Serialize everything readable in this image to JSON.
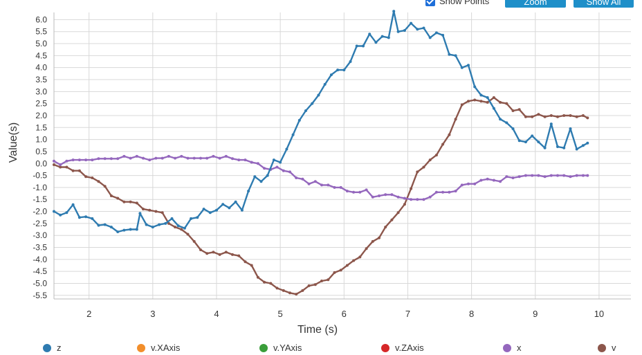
{
  "toolbar": {
    "show_points_label": "Show Points",
    "show_points_checked": true,
    "zoom_label": "Zoom",
    "show_all_label": "Show All"
  },
  "chart_data": {
    "type": "line",
    "xlabel": "Time (s)",
    "ylabel": "Value(s)",
    "xlim": [
      1.45,
      10.5
    ],
    "ylim": [
      -5.65,
      6.3
    ],
    "x_ticks": [
      2,
      3,
      4,
      5,
      6,
      7,
      8,
      9,
      10
    ],
    "y_ticks": [
      6.0,
      5.5,
      5.0,
      4.5,
      4.0,
      3.5,
      3.0,
      2.5,
      2.0,
      1.5,
      1.0,
      0.5,
      0.0,
      -0.5,
      -1.0,
      -1.5,
      -2.0,
      -2.5,
      -3.0,
      -3.5,
      -4.0,
      -4.5,
      -5.0,
      -5.5
    ],
    "grid": true,
    "show_points": true,
    "legend_position": "bottom",
    "series": [
      {
        "name": "z",
        "color": "#2e7bb0",
        "points": [
          [
            1.45,
            -2.0
          ],
          [
            1.55,
            -2.15
          ],
          [
            1.65,
            -2.05
          ],
          [
            1.75,
            -1.72
          ],
          [
            1.85,
            -2.25
          ],
          [
            1.95,
            -2.22
          ],
          [
            2.05,
            -2.3
          ],
          [
            2.15,
            -2.58
          ],
          [
            2.25,
            -2.55
          ],
          [
            2.35,
            -2.65
          ],
          [
            2.45,
            -2.85
          ],
          [
            2.55,
            -2.78
          ],
          [
            2.65,
            -2.75
          ],
          [
            2.75,
            -2.75
          ],
          [
            2.8,
            -2.08
          ],
          [
            2.9,
            -2.55
          ],
          [
            3.0,
            -2.65
          ],
          [
            3.1,
            -2.55
          ],
          [
            3.2,
            -2.5
          ],
          [
            3.3,
            -2.3
          ],
          [
            3.4,
            -2.6
          ],
          [
            3.5,
            -2.7
          ],
          [
            3.6,
            -2.3
          ],
          [
            3.7,
            -2.25
          ],
          [
            3.8,
            -1.9
          ],
          [
            3.9,
            -2.05
          ],
          [
            4.0,
            -1.95
          ],
          [
            4.1,
            -1.7
          ],
          [
            4.2,
            -1.85
          ],
          [
            4.3,
            -1.6
          ],
          [
            4.4,
            -1.95
          ],
          [
            4.5,
            -1.15
          ],
          [
            4.6,
            -0.55
          ],
          [
            4.7,
            -0.75
          ],
          [
            4.8,
            -0.5
          ],
          [
            4.9,
            0.15
          ],
          [
            5.0,
            0.05
          ],
          [
            5.1,
            0.6
          ],
          [
            5.2,
            1.2
          ],
          [
            5.3,
            1.8
          ],
          [
            5.4,
            2.2
          ],
          [
            5.5,
            2.5
          ],
          [
            5.6,
            2.85
          ],
          [
            5.7,
            3.3
          ],
          [
            5.8,
            3.7
          ],
          [
            5.9,
            3.9
          ],
          [
            6.0,
            3.9
          ],
          [
            6.1,
            4.25
          ],
          [
            6.2,
            4.9
          ],
          [
            6.3,
            4.9
          ],
          [
            6.4,
            5.4
          ],
          [
            6.5,
            5.05
          ],
          [
            6.6,
            5.3
          ],
          [
            6.7,
            5.25
          ],
          [
            6.78,
            6.35
          ],
          [
            6.85,
            5.5
          ],
          [
            6.95,
            5.55
          ],
          [
            7.05,
            5.85
          ],
          [
            7.15,
            5.6
          ],
          [
            7.25,
            5.65
          ],
          [
            7.35,
            5.25
          ],
          [
            7.45,
            5.45
          ],
          [
            7.55,
            5.35
          ],
          [
            7.65,
            4.55
          ],
          [
            7.75,
            4.5
          ],
          [
            7.85,
            4.0
          ],
          [
            7.95,
            4.1
          ],
          [
            8.05,
            3.2
          ],
          [
            8.15,
            2.85
          ],
          [
            8.25,
            2.75
          ],
          [
            8.35,
            2.3
          ],
          [
            8.45,
            1.85
          ],
          [
            8.55,
            1.7
          ],
          [
            8.65,
            1.45
          ],
          [
            8.75,
            0.95
          ],
          [
            8.85,
            0.9
          ],
          [
            8.95,
            1.15
          ],
          [
            9.05,
            0.9
          ],
          [
            9.15,
            0.65
          ],
          [
            9.25,
            1.65
          ],
          [
            9.35,
            0.7
          ],
          [
            9.45,
            0.65
          ],
          [
            9.55,
            1.45
          ],
          [
            9.65,
            0.6
          ],
          [
            9.75,
            0.75
          ],
          [
            9.82,
            0.85
          ]
        ]
      },
      {
        "name": "v.XAxis",
        "color": "#f28e2b",
        "points": []
      },
      {
        "name": "v.YAxis",
        "color": "#3a9e3a",
        "points": []
      },
      {
        "name": "v.ZAxis",
        "color": "#d62728",
        "points": []
      },
      {
        "name": "x",
        "color": "#9467bd",
        "points": [
          [
            1.45,
            0.1
          ],
          [
            1.55,
            -0.05
          ],
          [
            1.65,
            0.1
          ],
          [
            1.75,
            0.15
          ],
          [
            1.85,
            0.15
          ],
          [
            1.95,
            0.15
          ],
          [
            2.05,
            0.15
          ],
          [
            2.15,
            0.2
          ],
          [
            2.25,
            0.2
          ],
          [
            2.35,
            0.2
          ],
          [
            2.45,
            0.2
          ],
          [
            2.55,
            0.3
          ],
          [
            2.65,
            0.22
          ],
          [
            2.75,
            0.3
          ],
          [
            2.85,
            0.22
          ],
          [
            2.95,
            0.15
          ],
          [
            3.05,
            0.22
          ],
          [
            3.15,
            0.22
          ],
          [
            3.25,
            0.3
          ],
          [
            3.35,
            0.22
          ],
          [
            3.45,
            0.3
          ],
          [
            3.55,
            0.22
          ],
          [
            3.65,
            0.22
          ],
          [
            3.75,
            0.22
          ],
          [
            3.85,
            0.22
          ],
          [
            3.95,
            0.3
          ],
          [
            4.05,
            0.22
          ],
          [
            4.15,
            0.3
          ],
          [
            4.25,
            0.2
          ],
          [
            4.35,
            0.15
          ],
          [
            4.45,
            0.15
          ],
          [
            4.55,
            0.05
          ],
          [
            4.65,
            0.0
          ],
          [
            4.75,
            -0.2
          ],
          [
            4.85,
            -0.25
          ],
          [
            4.95,
            -0.15
          ],
          [
            5.05,
            -0.3
          ],
          [
            5.15,
            -0.35
          ],
          [
            5.25,
            -0.6
          ],
          [
            5.35,
            -0.65
          ],
          [
            5.45,
            -0.85
          ],
          [
            5.55,
            -0.75
          ],
          [
            5.65,
            -0.9
          ],
          [
            5.75,
            -0.9
          ],
          [
            5.85,
            -1.0
          ],
          [
            5.95,
            -1.0
          ],
          [
            6.05,
            -1.15
          ],
          [
            6.15,
            -1.2
          ],
          [
            6.25,
            -1.2
          ],
          [
            6.35,
            -1.1
          ],
          [
            6.45,
            -1.4
          ],
          [
            6.55,
            -1.35
          ],
          [
            6.65,
            -1.3
          ],
          [
            6.75,
            -1.3
          ],
          [
            6.85,
            -1.4
          ],
          [
            6.95,
            -1.45
          ],
          [
            7.05,
            -1.5
          ],
          [
            7.15,
            -1.5
          ],
          [
            7.25,
            -1.5
          ],
          [
            7.35,
            -1.4
          ],
          [
            7.45,
            -1.2
          ],
          [
            7.55,
            -1.2
          ],
          [
            7.65,
            -1.2
          ],
          [
            7.75,
            -1.15
          ],
          [
            7.85,
            -0.9
          ],
          [
            7.95,
            -0.85
          ],
          [
            8.05,
            -0.85
          ],
          [
            8.15,
            -0.7
          ],
          [
            8.25,
            -0.65
          ],
          [
            8.35,
            -0.7
          ],
          [
            8.45,
            -0.75
          ],
          [
            8.55,
            -0.55
          ],
          [
            8.65,
            -0.6
          ],
          [
            8.75,
            -0.55
          ],
          [
            8.85,
            -0.5
          ],
          [
            8.95,
            -0.5
          ],
          [
            9.05,
            -0.5
          ],
          [
            9.15,
            -0.55
          ],
          [
            9.25,
            -0.5
          ],
          [
            9.35,
            -0.5
          ],
          [
            9.45,
            -0.5
          ],
          [
            9.55,
            -0.55
          ],
          [
            9.65,
            -0.5
          ],
          [
            9.75,
            -0.5
          ],
          [
            9.82,
            -0.5
          ]
        ]
      },
      {
        "name": "v",
        "color": "#8c564b",
        "points": [
          [
            1.45,
            -0.05
          ],
          [
            1.55,
            -0.15
          ],
          [
            1.65,
            -0.15
          ],
          [
            1.75,
            -0.3
          ],
          [
            1.85,
            -0.3
          ],
          [
            1.95,
            -0.55
          ],
          [
            2.05,
            -0.6
          ],
          [
            2.15,
            -0.75
          ],
          [
            2.25,
            -0.95
          ],
          [
            2.35,
            -1.35
          ],
          [
            2.45,
            -1.45
          ],
          [
            2.55,
            -1.6
          ],
          [
            2.65,
            -1.6
          ],
          [
            2.75,
            -1.65
          ],
          [
            2.85,
            -1.9
          ],
          [
            2.95,
            -1.95
          ],
          [
            3.05,
            -2.0
          ],
          [
            3.15,
            -2.05
          ],
          [
            3.25,
            -2.5
          ],
          [
            3.35,
            -2.65
          ],
          [
            3.45,
            -2.75
          ],
          [
            3.55,
            -2.95
          ],
          [
            3.65,
            -3.25
          ],
          [
            3.75,
            -3.6
          ],
          [
            3.85,
            -3.75
          ],
          [
            3.95,
            -3.7
          ],
          [
            4.05,
            -3.8
          ],
          [
            4.15,
            -3.7
          ],
          [
            4.25,
            -3.8
          ],
          [
            4.35,
            -3.85
          ],
          [
            4.45,
            -4.1
          ],
          [
            4.55,
            -4.25
          ],
          [
            4.65,
            -4.75
          ],
          [
            4.75,
            -4.95
          ],
          [
            4.85,
            -5.0
          ],
          [
            4.95,
            -5.2
          ],
          [
            5.05,
            -5.3
          ],
          [
            5.15,
            -5.4
          ],
          [
            5.25,
            -5.45
          ],
          [
            5.35,
            -5.3
          ],
          [
            5.45,
            -5.1
          ],
          [
            5.55,
            -5.05
          ],
          [
            5.65,
            -4.9
          ],
          [
            5.75,
            -4.85
          ],
          [
            5.85,
            -4.55
          ],
          [
            5.95,
            -4.45
          ],
          [
            6.05,
            -4.25
          ],
          [
            6.15,
            -4.05
          ],
          [
            6.25,
            -3.9
          ],
          [
            6.35,
            -3.55
          ],
          [
            6.45,
            -3.25
          ],
          [
            6.55,
            -3.1
          ],
          [
            6.65,
            -2.65
          ],
          [
            6.75,
            -2.35
          ],
          [
            6.85,
            -2.05
          ],
          [
            6.95,
            -1.7
          ],
          [
            7.05,
            -1.05
          ],
          [
            7.15,
            -0.35
          ],
          [
            7.25,
            -0.15
          ],
          [
            7.35,
            0.15
          ],
          [
            7.45,
            0.35
          ],
          [
            7.55,
            0.8
          ],
          [
            7.65,
            1.2
          ],
          [
            7.75,
            1.85
          ],
          [
            7.85,
            2.45
          ],
          [
            7.95,
            2.6
          ],
          [
            8.05,
            2.65
          ],
          [
            8.15,
            2.6
          ],
          [
            8.25,
            2.55
          ],
          [
            8.35,
            2.75
          ],
          [
            8.45,
            2.55
          ],
          [
            8.55,
            2.5
          ],
          [
            8.65,
            2.2
          ],
          [
            8.75,
            2.25
          ],
          [
            8.85,
            1.95
          ],
          [
            8.95,
            1.95
          ],
          [
            9.05,
            2.05
          ],
          [
            9.15,
            1.95
          ],
          [
            9.25,
            2.0
          ],
          [
            9.35,
            1.95
          ],
          [
            9.45,
            2.0
          ],
          [
            9.55,
            2.0
          ],
          [
            9.65,
            1.95
          ],
          [
            9.75,
            2.0
          ],
          [
            9.82,
            1.9
          ]
        ]
      }
    ]
  }
}
